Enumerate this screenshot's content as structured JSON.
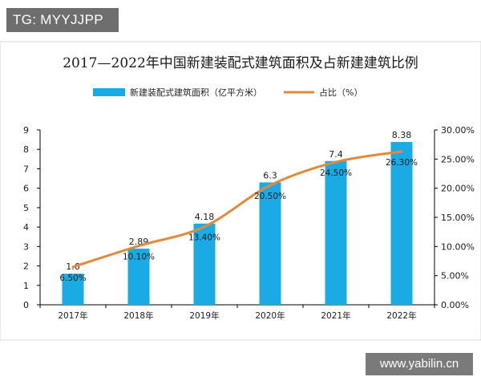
{
  "overlay": {
    "tag": "TG: MYYJJPP",
    "watermark": "www.yabilin.cn"
  },
  "colors": {
    "bar": "#1AABE5",
    "line": "#E08A3C",
    "axis": "#000000",
    "tag_bg": "#6E6E6E",
    "watermark_bg": "#7A7A7A"
  },
  "chart_data": {
    "type": "bar",
    "title": "2017—2022年中国新建装配式建筑面积及占新建建筑比例",
    "categories": [
      "2017年",
      "2018年",
      "2019年",
      "2020年",
      "2021年",
      "2022年"
    ],
    "series": [
      {
        "name": "新建装配式建筑面积（亿平方米）",
        "type": "bar",
        "axis": "left",
        "values": [
          1.6,
          2.89,
          4.18,
          6.3,
          7.4,
          8.38
        ],
        "labels": [
          "1.6",
          "2.89",
          "4.18",
          "6.3",
          "7.4",
          "8.38"
        ]
      },
      {
        "name": "占比（%）",
        "type": "line",
        "axis": "right",
        "values": [
          6.5,
          10.1,
          13.4,
          20.5,
          24.5,
          26.3
        ],
        "labels": [
          "6.50%",
          "10.10%",
          "13.40%",
          "20.50%",
          "24.50%",
          "26.30%"
        ]
      }
    ],
    "y_left": {
      "range": [
        0,
        9
      ],
      "ticks": [
        "0",
        "1",
        "2",
        "3",
        "4",
        "5",
        "6",
        "7",
        "8",
        "9"
      ]
    },
    "y_right": {
      "range": [
        0,
        30
      ],
      "ticks": [
        "0.00%",
        "5.00%",
        "10.00%",
        "15.00%",
        "20.00%",
        "25.00%",
        "30.00%"
      ]
    },
    "grid": false,
    "legend_position": "top"
  }
}
